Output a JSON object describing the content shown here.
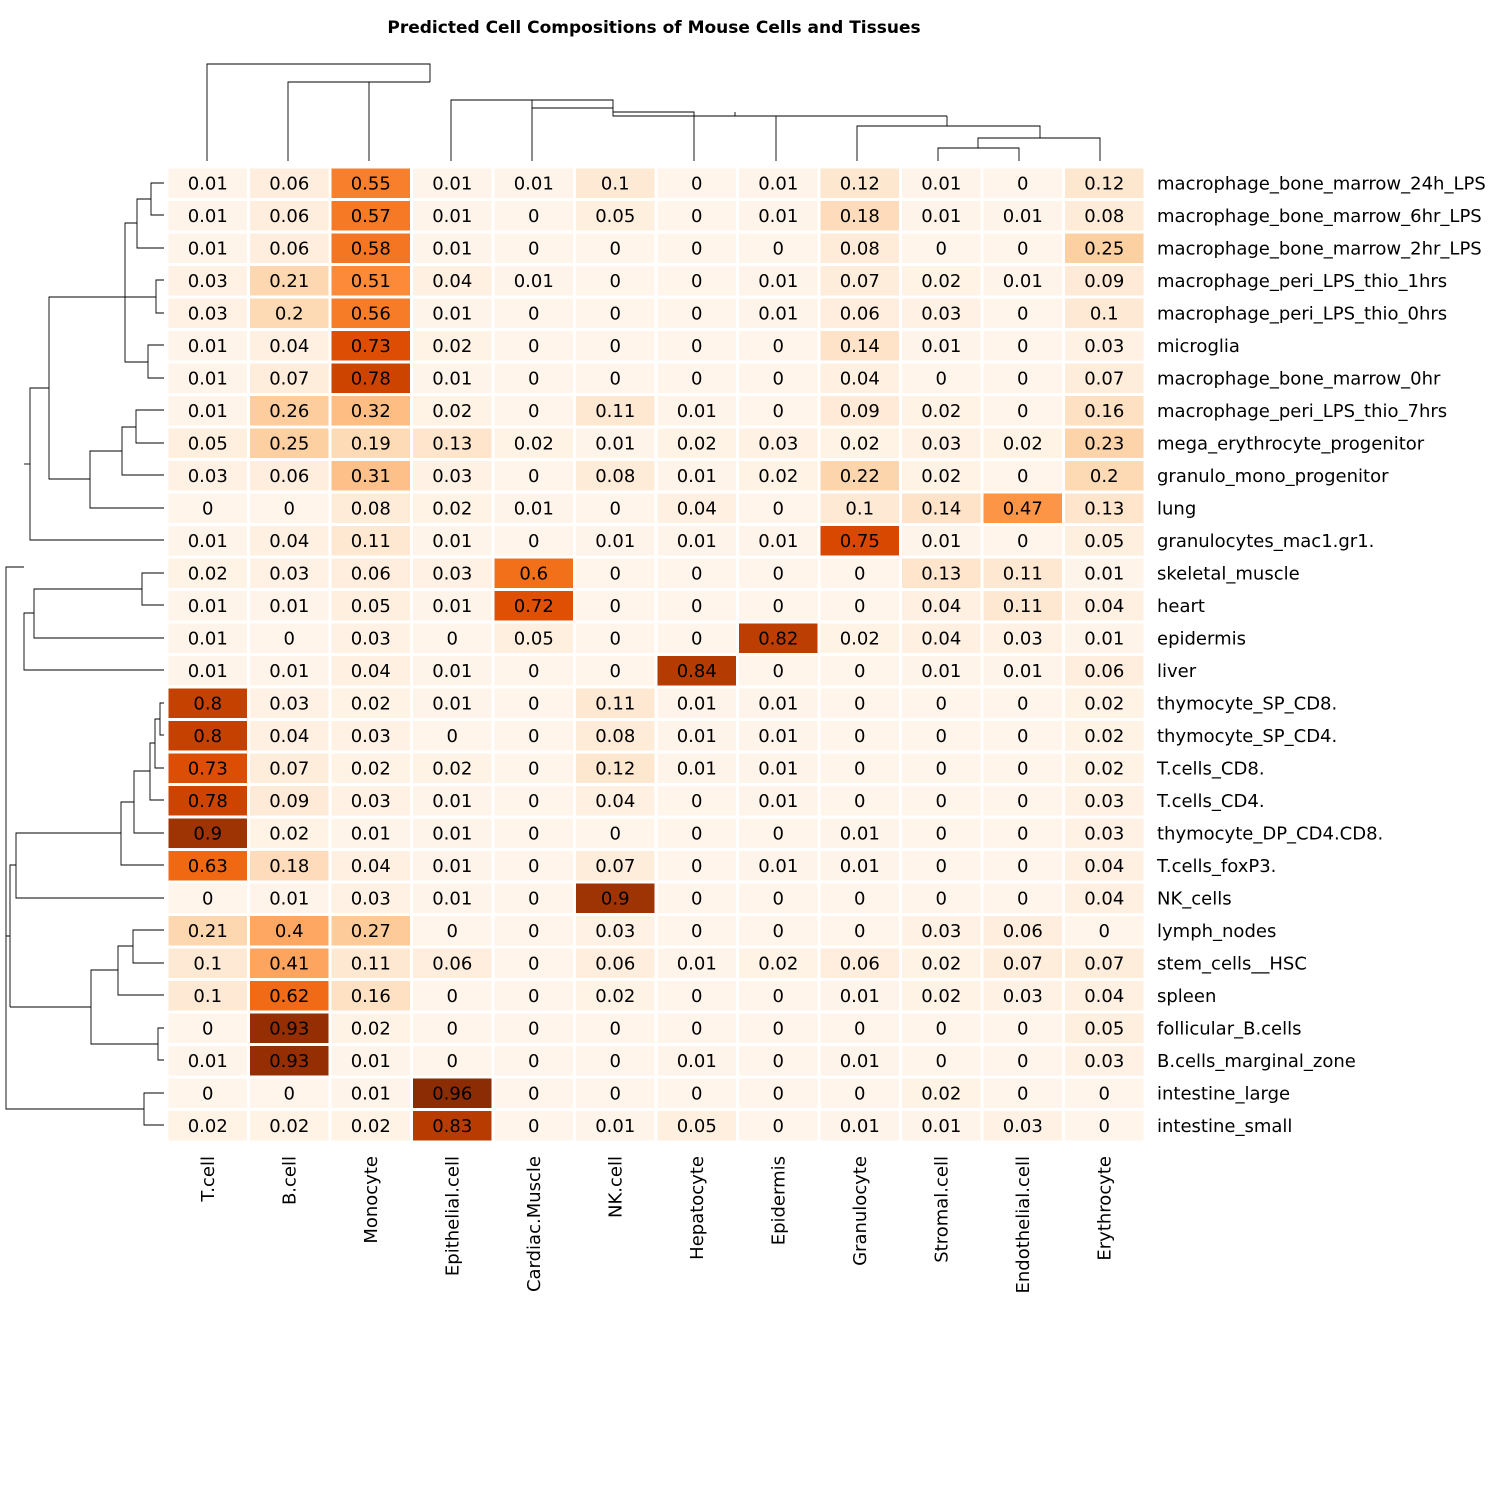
{
  "chart_data": {
    "type": "heatmap",
    "title": "Predicted Cell Compositions of Mouse Cells and Tissues",
    "colormap": "Oranges",
    "color_range": [
      0,
      1
    ],
    "columns": [
      "T.cell",
      "B.cell",
      "Monocyte",
      "Epithelial.cell",
      "Cardiac.Muscle",
      "NK.cell",
      "Hepatocyte",
      "Epidermis",
      "Granulocyte",
      "Stromal.cell",
      "Endothelial.cell",
      "Erythrocyte"
    ],
    "rows": [
      "macrophage_bone_marrow_24h_LPS",
      "macrophage_bone_marrow_6hr_LPS",
      "macrophage_bone_marrow_2hr_LPS",
      "macrophage_peri_LPS_thio_1hrs",
      "macrophage_peri_LPS_thio_0hrs",
      "microglia",
      "macrophage_bone_marrow_0hr",
      "macrophage_peri_LPS_thio_7hrs",
      "mega_erythrocyte_progenitor",
      "granulo_mono_progenitor",
      "lung",
      "granulocytes_mac1.gr1.",
      "skeletal_muscle",
      "heart",
      "epidermis",
      "liver",
      "thymocyte_SP_CD8.",
      "thymocyte_SP_CD4.",
      "T.cells_CD8.",
      "T.cells_CD4.",
      "thymocyte_DP_CD4.CD8.",
      "T.cells_foxP3.",
      "NK_cells",
      "lymph_nodes",
      "stem_cells__HSC",
      "spleen",
      "follicular_B.cells",
      "B.cells_marginal_zone",
      "intestine_large",
      "intestine_small"
    ],
    "values": [
      [
        "0.01",
        "0.06",
        "0.55",
        "0.01",
        "0.01",
        "0.1",
        "0",
        "0.01",
        "0.12",
        "0.01",
        "0",
        "0.12"
      ],
      [
        "0.01",
        "0.06",
        "0.57",
        "0.01",
        "0",
        "0.05",
        "0",
        "0.01",
        "0.18",
        "0.01",
        "0.01",
        "0.08"
      ],
      [
        "0.01",
        "0.06",
        "0.58",
        "0.01",
        "0",
        "0",
        "0",
        "0",
        "0.08",
        "0",
        "0",
        "0.25"
      ],
      [
        "0.03",
        "0.21",
        "0.51",
        "0.04",
        "0.01",
        "0",
        "0",
        "0.01",
        "0.07",
        "0.02",
        "0.01",
        "0.09"
      ],
      [
        "0.03",
        "0.2",
        "0.56",
        "0.01",
        "0",
        "0",
        "0",
        "0.01",
        "0.06",
        "0.03",
        "0",
        "0.1"
      ],
      [
        "0.01",
        "0.04",
        "0.73",
        "0.02",
        "0",
        "0",
        "0",
        "0",
        "0.14",
        "0.01",
        "0",
        "0.03"
      ],
      [
        "0.01",
        "0.07",
        "0.78",
        "0.01",
        "0",
        "0",
        "0",
        "0",
        "0.04",
        "0",
        "0",
        "0.07"
      ],
      [
        "0.01",
        "0.26",
        "0.32",
        "0.02",
        "0",
        "0.11",
        "0.01",
        "0",
        "0.09",
        "0.02",
        "0",
        "0.16"
      ],
      [
        "0.05",
        "0.25",
        "0.19",
        "0.13",
        "0.02",
        "0.01",
        "0.02",
        "0.03",
        "0.02",
        "0.03",
        "0.02",
        "0.23"
      ],
      [
        "0.03",
        "0.06",
        "0.31",
        "0.03",
        "0",
        "0.08",
        "0.01",
        "0.02",
        "0.22",
        "0.02",
        "0",
        "0.2"
      ],
      [
        "0",
        "0",
        "0.08",
        "0.02",
        "0.01",
        "0",
        "0.04",
        "0",
        "0.1",
        "0.14",
        "0.47",
        "0.13"
      ],
      [
        "0.01",
        "0.04",
        "0.11",
        "0.01",
        "0",
        "0.01",
        "0.01",
        "0.01",
        "0.75",
        "0.01",
        "0",
        "0.05"
      ],
      [
        "0.02",
        "0.03",
        "0.06",
        "0.03",
        "0.6",
        "0",
        "0",
        "0",
        "0",
        "0.13",
        "0.11",
        "0.01"
      ],
      [
        "0.01",
        "0.01",
        "0.05",
        "0.01",
        "0.72",
        "0",
        "0",
        "0",
        "0",
        "0.04",
        "0.11",
        "0.04"
      ],
      [
        "0.01",
        "0",
        "0.03",
        "0",
        "0.05",
        "0",
        "0",
        "0.82",
        "0.02",
        "0.04",
        "0.03",
        "0.01"
      ],
      [
        "0.01",
        "0.01",
        "0.04",
        "0.01",
        "0",
        "0",
        "0.84",
        "0",
        "0",
        "0.01",
        "0.01",
        "0.06"
      ],
      [
        "0.8",
        "0.03",
        "0.02",
        "0.01",
        "0",
        "0.11",
        "0.01",
        "0.01",
        "0",
        "0",
        "0",
        "0.02"
      ],
      [
        "0.8",
        "0.04",
        "0.03",
        "0",
        "0",
        "0.08",
        "0.01",
        "0.01",
        "0",
        "0",
        "0",
        "0.02"
      ],
      [
        "0.73",
        "0.07",
        "0.02",
        "0.02",
        "0",
        "0.12",
        "0.01",
        "0.01",
        "0",
        "0",
        "0",
        "0.02"
      ],
      [
        "0.78",
        "0.09",
        "0.03",
        "0.01",
        "0",
        "0.04",
        "0",
        "0.01",
        "0",
        "0",
        "0",
        "0.03"
      ],
      [
        "0.9",
        "0.02",
        "0.01",
        "0.01",
        "0",
        "0",
        "0",
        "0",
        "0.01",
        "0",
        "0",
        "0.03"
      ],
      [
        "0.63",
        "0.18",
        "0.04",
        "0.01",
        "0",
        "0.07",
        "0",
        "0.01",
        "0.01",
        "0",
        "0",
        "0.04"
      ],
      [
        "0",
        "0.01",
        "0.03",
        "0.01",
        "0",
        "0.9",
        "0",
        "0",
        "0",
        "0",
        "0",
        "0.04"
      ],
      [
        "0.21",
        "0.4",
        "0.27",
        "0",
        "0",
        "0.03",
        "0",
        "0",
        "0",
        "0.03",
        "0.06",
        "0"
      ],
      [
        "0.1",
        "0.41",
        "0.11",
        "0.06",
        "0",
        "0.06",
        "0.01",
        "0.02",
        "0.06",
        "0.02",
        "0.07",
        "0.07"
      ],
      [
        "0.1",
        "0.62",
        "0.16",
        "0",
        "0",
        "0.02",
        "0",
        "0",
        "0.01",
        "0.02",
        "0.03",
        "0.04"
      ],
      [
        "0",
        "0.93",
        "0.02",
        "0",
        "0",
        "0",
        "0",
        "0",
        "0",
        "0",
        "0",
        "0.05"
      ],
      [
        "0.01",
        "0.93",
        "0.01",
        "0",
        "0",
        "0",
        "0.01",
        "0",
        "0.01",
        "0",
        "0",
        "0.03"
      ],
      [
        "0",
        "0",
        "0.01",
        "0.96",
        "0",
        "0",
        "0",
        "0",
        "0",
        "0.02",
        "0",
        "0"
      ],
      [
        "0.02",
        "0.02",
        "0.02",
        "0.83",
        "0",
        "0.01",
        "0.05",
        "0",
        "0.01",
        "0.01",
        "0.03",
        "0"
      ]
    ],
    "dendrograms": [
      "rows",
      "columns"
    ],
    "legend": "none"
  }
}
